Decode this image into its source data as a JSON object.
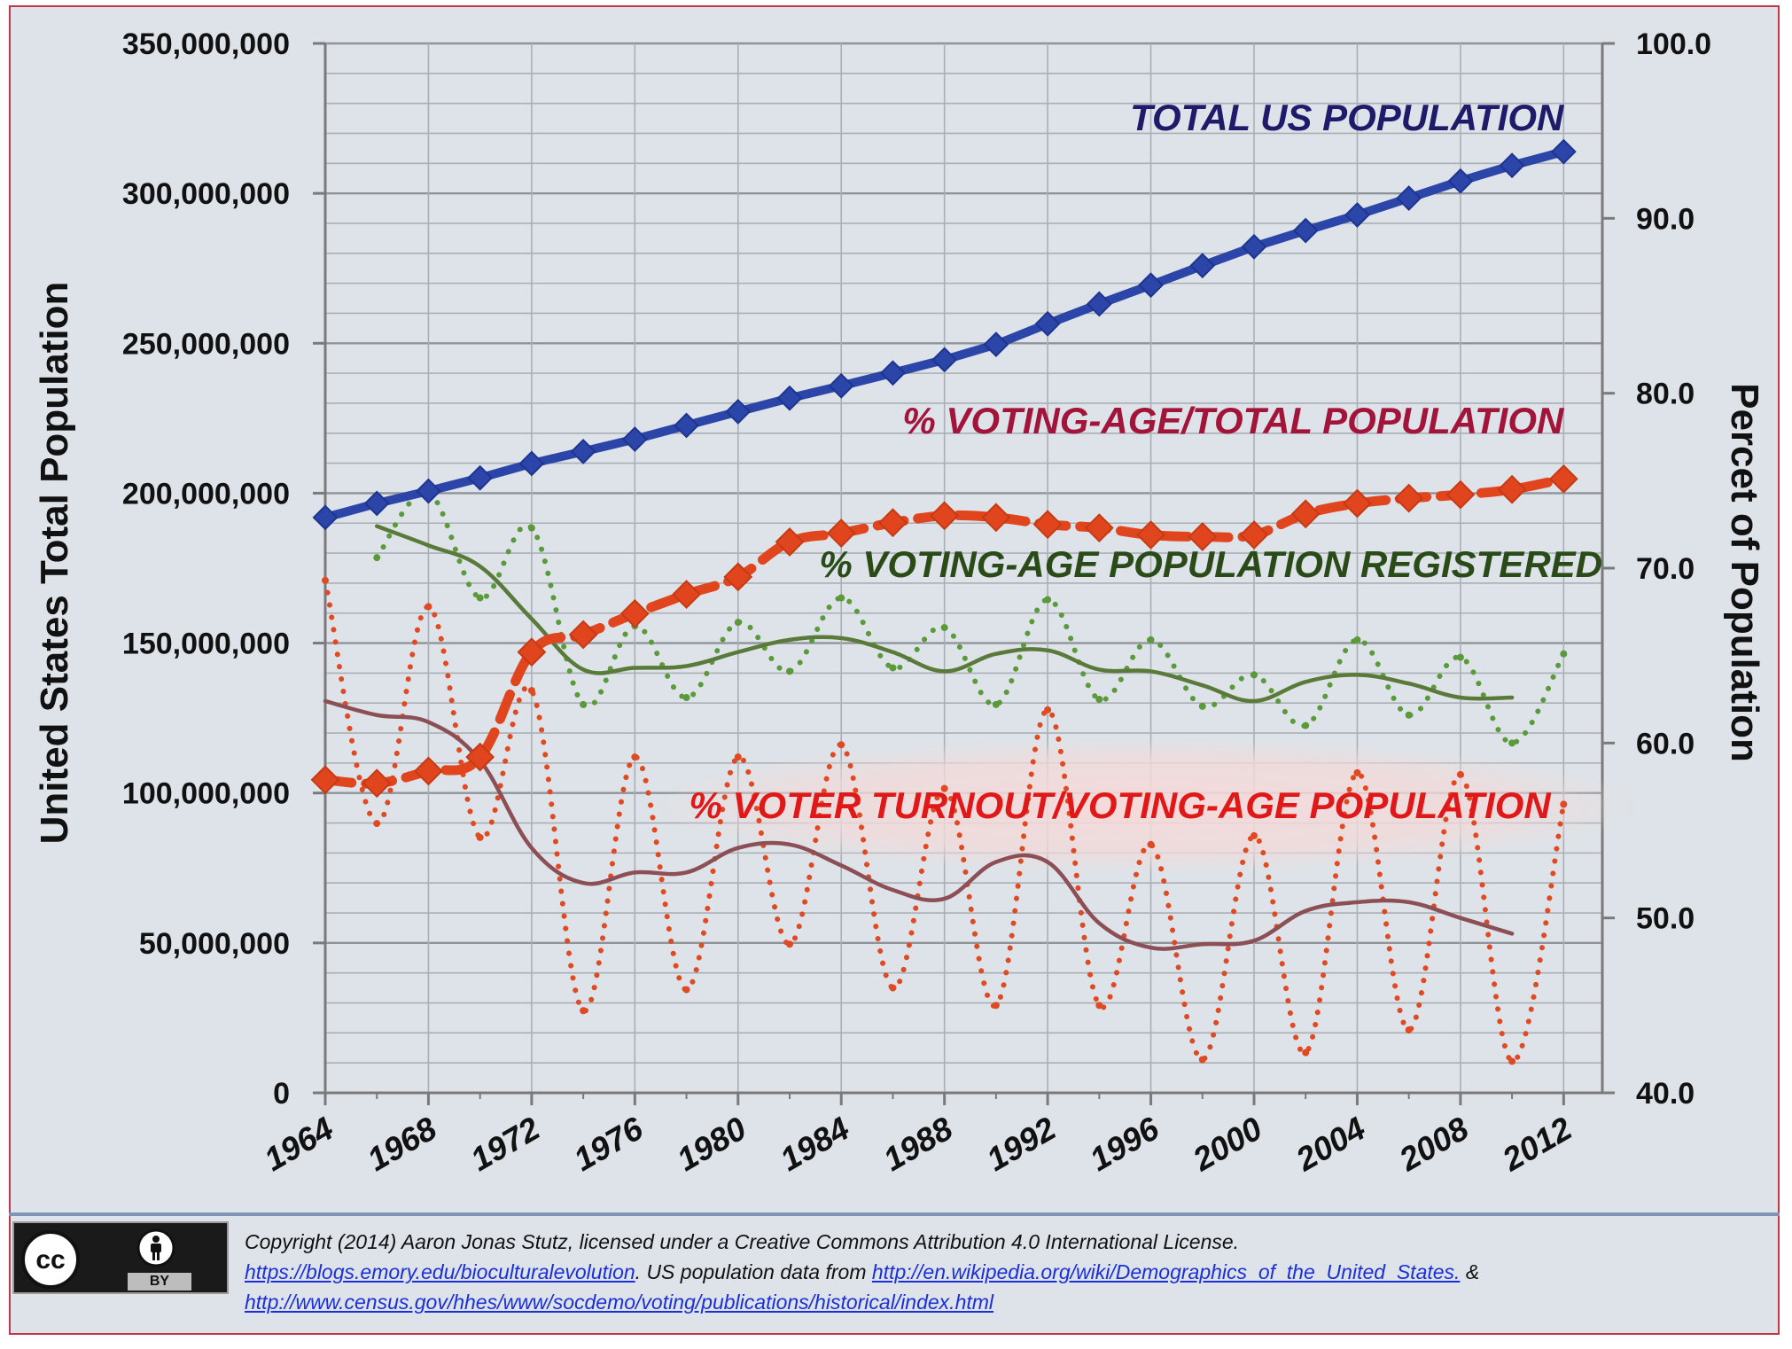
{
  "chart_data": {
    "type": "line",
    "title": "",
    "x": [
      1964,
      1966,
      1968,
      1970,
      1972,
      1974,
      1976,
      1978,
      1980,
      1982,
      1984,
      1986,
      1988,
      1990,
      1992,
      1994,
      1996,
      1998,
      2000,
      2002,
      2004,
      2006,
      2008,
      2010,
      2012
    ],
    "x_ticks": [
      "1964",
      "1968",
      "1972",
      "1976",
      "1980",
      "1984",
      "1988",
      "1992",
      "1996",
      "2000",
      "2004",
      "2008",
      "2012"
    ],
    "x_tick_values": [
      1964,
      1968,
      1972,
      1976,
      1980,
      1984,
      1988,
      1992,
      1996,
      2000,
      2004,
      2008,
      2012
    ],
    "xlim": [
      1964,
      2013.5
    ],
    "xlabel": "",
    "ylabel_left": "United States Total Population",
    "ylabel_right": "Percet of Population",
    "ylim_left": [
      0,
      350000000
    ],
    "ylim_right": [
      40,
      100
    ],
    "left_ticks": [
      "0",
      "50,000,000",
      "100,000,000",
      "150,000,000",
      "200,000,000",
      "250,000,000",
      "300,000,000",
      "350,000,000"
    ],
    "left_tick_values": [
      0,
      50000000,
      100000000,
      150000000,
      200000000,
      250000000,
      300000000,
      350000000
    ],
    "right_ticks": [
      "40.0",
      "50.0",
      "60.0",
      "70.0",
      "80.0",
      "90.0",
      "100.0"
    ],
    "right_tick_values": [
      40,
      50,
      60,
      70,
      80,
      90,
      100
    ],
    "grid": true,
    "series": [
      {
        "name": "TOTAL US POPULATION",
        "axis": "left",
        "color": "#2b45a8",
        "style": "solid-markers",
        "x": [
          1964,
          1966,
          1968,
          1970,
          1972,
          1974,
          1976,
          1978,
          1980,
          1982,
          1984,
          1986,
          1988,
          1990,
          1992,
          1994,
          1996,
          1998,
          2000,
          2002,
          2004,
          2006,
          2008,
          2010,
          2012
        ],
        "values": [
          191900000,
          196600000,
          200700000,
          205100000,
          209900000,
          213900000,
          218000000,
          222600000,
          227200000,
          231700000,
          235800000,
          240100000,
          244500000,
          249600000,
          256500000,
          263100000,
          269400000,
          275900000,
          282200000,
          287600000,
          292800000,
          298400000,
          304100000,
          309300000,
          313900000
        ]
      },
      {
        "name": "% VOTING-AGE/TOTAL POPULATION",
        "axis": "right",
        "color": "#e0451e",
        "style": "dashed-markers",
        "x": [
          1964,
          1966,
          1968,
          1970,
          1972,
          1974,
          1976,
          1978,
          1980,
          1982,
          1984,
          1986,
          1988,
          1990,
          1992,
          1994,
          1996,
          1998,
          2000,
          2002,
          2004,
          2006,
          2008,
          2010,
          2012
        ],
        "values": [
          57.9,
          57.7,
          58.4,
          59.2,
          65.2,
          66.2,
          67.4,
          68.5,
          69.5,
          71.5,
          72.0,
          72.6,
          73.0,
          72.9,
          72.5,
          72.3,
          71.9,
          71.8,
          71.9,
          73.1,
          73.7,
          74.0,
          74.2,
          74.5,
          75.1
        ]
      },
      {
        "name": "% VOTING-AGE POPULATION REGISTERED",
        "axis": "right",
        "color": "#5a7a3a",
        "style": "smoothed",
        "x": [
          1966,
          1968,
          1970,
          1972,
          1974,
          1976,
          1978,
          1980,
          1982,
          1984,
          1986,
          1988,
          1990,
          1992,
          1994,
          1996,
          1998,
          2000,
          2002,
          2004,
          2006,
          2008,
          2010
        ],
        "values": [
          72.4,
          71.3,
          70.1,
          67.1,
          64.2,
          64.3,
          64.4,
          65.2,
          65.9,
          66.0,
          65.2,
          64.1,
          65.1,
          65.3,
          64.2,
          64.1,
          63.3,
          62.4,
          63.5,
          63.9,
          63.4,
          62.6,
          62.6
        ]
      },
      {
        "name": "% VOTING-AGE POPULATION REGISTERED (annual)",
        "axis": "right",
        "color": "#5a9a3a",
        "style": "dotted",
        "x": [
          1966,
          1968,
          1970,
          1972,
          1974,
          1976,
          1978,
          1980,
          1982,
          1984,
          1986,
          1988,
          1990,
          1992,
          1994,
          1996,
          1998,
          2000,
          2002,
          2004,
          2006,
          2008,
          2010,
          2012
        ],
        "values": [
          70.6,
          74.3,
          68.3,
          72.3,
          62.2,
          66.7,
          62.6,
          66.9,
          64.1,
          68.3,
          64.3,
          66.6,
          62.2,
          68.2,
          62.5,
          65.9,
          62.1,
          63.9,
          61.0,
          65.9,
          61.6,
          64.9,
          60.0,
          65.1
        ]
      },
      {
        "name": "% VOTER TURNOUT/VOTING-AGE POPULATION",
        "axis": "right",
        "color": "#e04a22",
        "style": "dotted",
        "x": [
          1964,
          1966,
          1968,
          1970,
          1972,
          1974,
          1976,
          1978,
          1980,
          1982,
          1984,
          1986,
          1988,
          1990,
          1992,
          1994,
          1996,
          1998,
          2000,
          2002,
          2004,
          2006,
          2008,
          2010,
          2012
        ],
        "values": [
          69.3,
          55.4,
          67.8,
          54.6,
          63.0,
          44.7,
          59.2,
          45.9,
          59.2,
          48.5,
          59.9,
          46.0,
          57.4,
          45.0,
          61.9,
          45.0,
          54.2,
          41.9,
          54.7,
          42.3,
          58.3,
          43.6,
          58.2,
          41.8,
          56.5
        ]
      },
      {
        "name": "% VOTER TURNOUT/VOTING-AGE POPULATION (trend)",
        "axis": "right",
        "color": "#8c4f55",
        "style": "smoothed",
        "x": [
          1964,
          1966,
          1968,
          1970,
          1972,
          1974,
          1976,
          1978,
          1980,
          1982,
          1984,
          1986,
          1988,
          1990,
          1992,
          1994,
          1996,
          1998,
          2000,
          2002,
          2004,
          2006,
          2008,
          2010
        ],
        "values": [
          62.4,
          61.6,
          61.2,
          59.0,
          54.0,
          52.0,
          52.6,
          52.6,
          54.0,
          54.2,
          53.0,
          51.6,
          51.1,
          53.2,
          53.2,
          49.7,
          48.3,
          48.5,
          48.7,
          50.4,
          50.9,
          50.9,
          50.0,
          49.1
        ]
      }
    ],
    "labels": [
      {
        "name": "label-total-population",
        "text": "TOTAL US POPULATION",
        "color": "#1f1a6a",
        "anchor": "end",
        "x": 2012,
        "axis": "left",
        "y": 321000000
      },
      {
        "name": "label-voting-age-total",
        "text": "% VOTING-AGE/TOTAL POPULATION",
        "color": "#a3143a",
        "anchor": "end",
        "x": 2012,
        "axis": "right",
        "y": 77.7
      },
      {
        "name": "label-registered",
        "text": "% VOTING-AGE POPULATION REGISTERED",
        "color": "#2a4a18",
        "anchor": "end",
        "x": 2013.5,
        "axis": "right",
        "y": 69.5
      },
      {
        "name": "label-turnout",
        "text": "% VOTER TURNOUT/VOTING-AGE POPULATION",
        "color": "#e01818",
        "anchor": "end",
        "x": 2011.5,
        "axis": "right",
        "y": 55.7
      }
    ]
  },
  "footer": {
    "cc_by_label": "BY",
    "copyright_line": "Copyright (2014) Aaron Jonas Stutz, licensed under a Creative Commons Attribution 4.0 International License.",
    "link_blog": "https://blogs.emory.edu/bioculturalevolution",
    "text_population_source": ". US population data from ",
    "link_wikipedia": "http://en.wikipedia.org/wiki/Demographics_of_the_United_States.",
    "text_and": " &",
    "link_census": "http://www.census.gov/hhes/www/socdemo/voting/publications/historical/index.html"
  },
  "colors": {
    "background": "#dde3e8",
    "frame_border": "#c03848",
    "grid_major": "#8e9499",
    "grid_minor": "#a9afb4",
    "axis": "#7a7a7a",
    "link": "#1a2fd8"
  }
}
